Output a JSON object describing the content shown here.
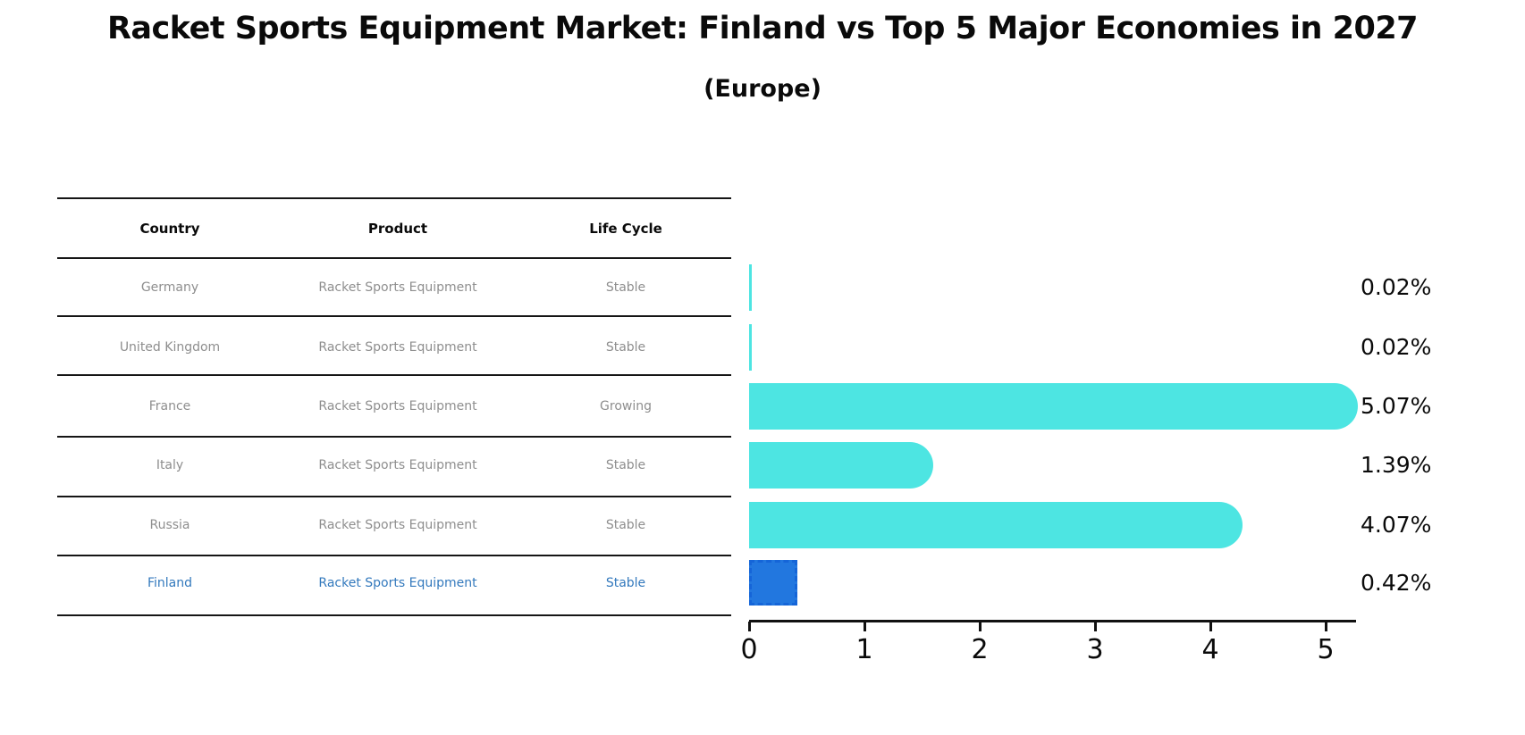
{
  "title": "Racket Sports Equipment Market: Finland vs Top 5 Major Economies in 2027",
  "subtitle": "(Europe)",
  "table": {
    "columns": [
      "Country",
      "Product",
      "Life Cycle"
    ],
    "rows": [
      {
        "country": "Germany",
        "product": "Racket Sports Equipment",
        "life_cycle": "Stable"
      },
      {
        "country": "United Kingdom",
        "product": "Racket Sports Equipment",
        "life_cycle": "Stable"
      },
      {
        "country": "France",
        "product": "Racket Sports Equipment",
        "life_cycle": "Growing"
      },
      {
        "country": "Italy",
        "product": "Racket Sports Equipment",
        "life_cycle": "Stable"
      },
      {
        "country": "Russia",
        "product": "Racket Sports Equipment",
        "life_cycle": "Stable"
      },
      {
        "country": "Finland",
        "product": "Racket Sports Equipment",
        "life_cycle": "Stable"
      }
    ]
  },
  "chart_data": {
    "type": "bar",
    "orientation": "horizontal",
    "categories": [
      "Germany",
      "United Kingdom",
      "France",
      "Italy",
      "Russia",
      "Finland"
    ],
    "values": [
      0.02,
      0.02,
      5.07,
      1.39,
      4.07,
      0.42
    ],
    "value_labels": [
      "0.02%",
      "0.02%",
      "5.07%",
      "1.39%",
      "4.07%",
      "0.42%"
    ],
    "x_ticks": [
      0,
      1,
      2,
      3,
      4,
      5
    ],
    "x_tick_labels": [
      "0",
      "1",
      "2",
      "3",
      "4",
      "5"
    ],
    "xlim": [
      0,
      5.35
    ],
    "grid": false,
    "legend": "none",
    "highlight_category": "Finland",
    "colors": {
      "bar": "#4de5e2",
      "highlight_fill": "#2277df",
      "highlight_edge": "#1565d8",
      "highlight_text": "#3379bd",
      "table_text": "#8e8e8e",
      "axis": "#111111"
    }
  }
}
